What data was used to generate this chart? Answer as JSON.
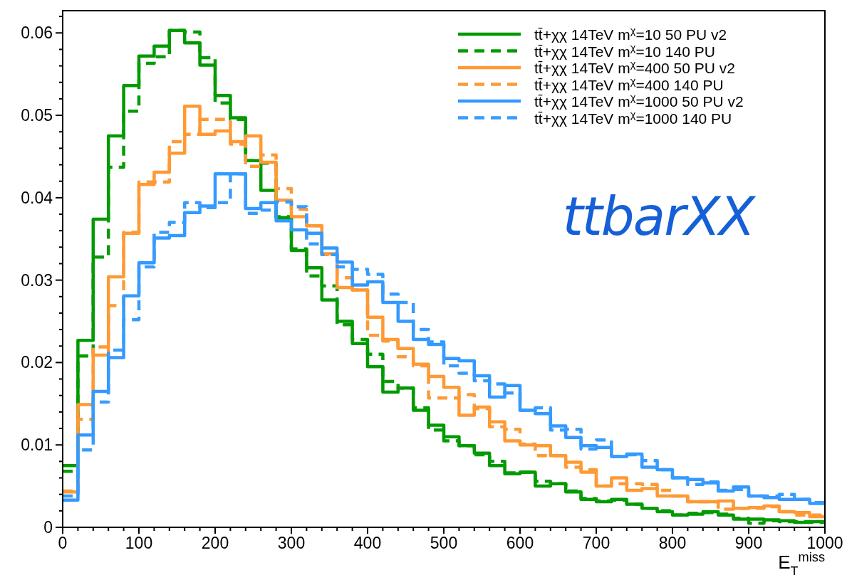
{
  "chart_data": {
    "type": "histogram",
    "xlabel": "E$_{T}$$^{miss}$",
    "bins": [
      0,
      20,
      40,
      60,
      80,
      100,
      120,
      140,
      160,
      180,
      200,
      220,
      240,
      260,
      280,
      300,
      320,
      340,
      360,
      380,
      400,
      420,
      440,
      460,
      480,
      500,
      520,
      540,
      560,
      580,
      600,
      620,
      640,
      660,
      680,
      700,
      720,
      740,
      760,
      780,
      800,
      820,
      840,
      860,
      880,
      900,
      920,
      940,
      960,
      980,
      1000
    ],
    "series": [
      {
        "name": "tt̄+χχ 14TeV m$^{χ}$=10 50 PU v2",
        "color": "#009900",
        "line_style": "solid",
        "values": [
          0.0075,
          0.0227,
          0.0374,
          0.0475,
          0.0536,
          0.0572,
          0.0584,
          0.0603,
          0.0588,
          0.0561,
          0.0524,
          0.0497,
          0.0445,
          0.0409,
          0.0376,
          0.0336,
          0.0315,
          0.0276,
          0.025,
          0.0223,
          0.0195,
          0.0164,
          0.0169,
          0.0142,
          0.0124,
          0.011,
          0.0099,
          0.009,
          0.0075,
          0.0065,
          0.0067,
          0.005,
          0.0053,
          0.0043,
          0.0034,
          0.0031,
          0.0034,
          0.0028,
          0.0023,
          0.0019,
          0.0015,
          0.0016,
          0.0019,
          0.0015,
          0.001,
          0.001,
          0.0009,
          0.0008,
          0.0006,
          0.0007
        ]
      },
      {
        "name": "tt̄+χχ 14TeV m$^{χ}$=10 140 PU",
        "color": "#049c04",
        "line_style": "dashed",
        "values": [
          0.0068,
          0.0208,
          0.0328,
          0.0437,
          0.0505,
          0.0563,
          0.0571,
          0.0603,
          0.0601,
          0.057,
          0.0515,
          0.0495,
          0.0445,
          0.0442,
          0.0377,
          0.0338,
          0.0305,
          0.0293,
          0.0246,
          0.0228,
          0.021,
          0.0177,
          0.0169,
          0.0145,
          0.0118,
          0.0105,
          0.0099,
          0.0088,
          0.008,
          0.0066,
          0.0067,
          0.0056,
          0.0053,
          0.0044,
          0.0035,
          0.0032,
          0.0033,
          0.0028,
          0.0023,
          0.002,
          0.0015,
          0.0017,
          0.0018,
          0.0016,
          0.0011,
          0.0005,
          0.0008,
          0.0007,
          0.0007,
          0.0006
        ]
      },
      {
        "name": "tt̄+χχ 14TeV m$^{χ}$=400 50 PU v2",
        "color": "#ff9933",
        "line_style": "solid",
        "values": [
          0.0043,
          0.0149,
          0.0209,
          0.0304,
          0.0357,
          0.0416,
          0.0431,
          0.0454,
          0.0511,
          0.0477,
          0.0481,
          0.0468,
          0.0475,
          0.0443,
          0.0397,
          0.0377,
          0.0366,
          0.0332,
          0.0291,
          0.0288,
          0.0255,
          0.0228,
          0.0217,
          0.0198,
          0.0183,
          0.017,
          0.0136,
          0.0146,
          0.0128,
          0.0105,
          0.01,
          0.0099,
          0.0087,
          0.0079,
          0.0067,
          0.005,
          0.006,
          0.0045,
          0.0047,
          0.0038,
          0.0038,
          0.0031,
          0.0031,
          0.0032,
          0.0023,
          0.0024,
          0.0026,
          0.0019,
          0.0018,
          0.0013
        ]
      },
      {
        "name": "tt̄+χχ 14TeV m$^{χ}$=400 140 PU",
        "color": "#fd9a36",
        "line_style": "dashed",
        "values": [
          0.0044,
          0.0131,
          0.0219,
          0.0269,
          0.0358,
          0.0419,
          0.0419,
          0.0468,
          0.0477,
          0.0495,
          0.0495,
          0.0465,
          0.0438,
          0.0452,
          0.0411,
          0.0386,
          0.0366,
          0.0331,
          0.0303,
          0.0288,
          0.0233,
          0.0226,
          0.0207,
          0.0196,
          0.0157,
          0.0157,
          0.0161,
          0.0144,
          0.0122,
          0.0119,
          0.0101,
          0.0087,
          0.0087,
          0.0073,
          0.007,
          0.005,
          0.0053,
          0.0053,
          0.0052,
          0.0045,
          0.0038,
          0.0031,
          0.0031,
          0.0022,
          0.0023,
          0.0023,
          0.0025,
          0.0019,
          0.0015,
          0.0015
        ]
      },
      {
        "name": "tt̄+χχ 14TeV m$^{χ}$=1000 50 PU v2",
        "color": "#3399ff",
        "line_style": "solid",
        "values": [
          0.0033,
          0.0112,
          0.0165,
          0.0206,
          0.0281,
          0.0321,
          0.0351,
          0.0354,
          0.0382,
          0.039,
          0.0429,
          0.0429,
          0.0387,
          0.0394,
          0.0372,
          0.0361,
          0.0357,
          0.0339,
          0.0322,
          0.0294,
          0.0298,
          0.0273,
          0.025,
          0.0228,
          0.0222,
          0.0205,
          0.0202,
          0.0184,
          0.0158,
          0.0172,
          0.0142,
          0.0138,
          0.0123,
          0.0109,
          0.0099,
          0.0097,
          0.0086,
          0.0089,
          0.0073,
          0.007,
          0.006,
          0.0058,
          0.0054,
          0.0044,
          0.0049,
          0.0038,
          0.0036,
          0.0034,
          0.0034,
          0.0029
        ]
      },
      {
        "name": "tt̄+χχ 14TeV m$^{χ}$=1000 140 PU",
        "color": "#379cfd",
        "line_style": "dashed",
        "values": [
          0.0038,
          0.0094,
          0.0152,
          0.0215,
          0.0252,
          0.0316,
          0.0358,
          0.037,
          0.0394,
          0.0388,
          0.0394,
          0.0429,
          0.0381,
          0.0385,
          0.0395,
          0.0389,
          0.0344,
          0.0331,
          0.0316,
          0.0313,
          0.0307,
          0.0283,
          0.0273,
          0.024,
          0.0225,
          0.0196,
          0.0187,
          0.0178,
          0.0174,
          0.0163,
          0.0142,
          0.0145,
          0.0118,
          0.0119,
          0.0095,
          0.0106,
          0.0086,
          0.0088,
          0.0081,
          0.007,
          0.006,
          0.0052,
          0.0055,
          0.0045,
          0.0046,
          0.0038,
          0.0038,
          0.004,
          0.0034,
          0.003
        ]
      }
    ],
    "xlim": [
      0,
      1000
    ],
    "xticks": [
      0,
      {
        "value": 20,
        "label": null
      },
      {
        "value": 40,
        "label": null
      },
      {
        "value": 60,
        "label": null
      },
      {
        "value": 80,
        "label": null
      },
      100,
      {
        "value": 120,
        "label": null
      },
      {
        "value": 140,
        "label": null
      },
      {
        "value": 160,
        "label": null
      },
      {
        "value": 180,
        "label": null
      },
      200,
      {
        "value": 220,
        "label": null
      },
      {
        "value": 240,
        "label": null
      },
      {
        "value": 260,
        "label": null
      },
      {
        "value": 280,
        "label": null
      },
      300,
      {
        "value": 320,
        "label": null
      },
      {
        "value": 340,
        "label": null
      },
      {
        "value": 360,
        "label": null
      },
      {
        "value": 380,
        "label": null
      },
      400,
      {
        "value": 420,
        "label": null
      },
      {
        "value": 440,
        "label": null
      },
      {
        "value": 460,
        "label": null
      },
      {
        "value": 480,
        "label": null
      },
      500,
      {
        "value": 520,
        "label": null
      },
      {
        "value": 540,
        "label": null
      },
      {
        "value": 560,
        "label": null
      },
      {
        "value": 580,
        "label": null
      },
      600,
      {
        "value": 620,
        "label": null
      },
      {
        "value": 640,
        "label": null
      },
      {
        "value": 660,
        "label": null
      },
      {
        "value": 680,
        "label": null
      },
      700,
      {
        "value": 720,
        "label": null
      },
      {
        "value": 740,
        "label": null
      },
      {
        "value": 760,
        "label": null
      },
      {
        "value": 780,
        "label": null
      },
      800,
      {
        "value": 820,
        "label": null
      },
      {
        "value": 840,
        "label": null
      },
      {
        "value": 860,
        "label": null
      },
      {
        "value": 880,
        "label": null
      },
      900,
      {
        "value": 920,
        "label": null
      },
      {
        "value": 940,
        "label": null
      },
      {
        "value": 960,
        "label": null
      },
      {
        "value": 980,
        "label": null
      },
      1000
    ],
    "ylim": [
      0,
      0.0627
    ],
    "yticks": [
      0,
      {
        "value": 0.002,
        "label": null
      },
      {
        "value": 0.004,
        "label": null
      },
      {
        "value": 0.006,
        "label": null
      },
      {
        "value": 0.008,
        "label": null
      },
      0.01,
      {
        "value": 0.012,
        "label": null
      },
      {
        "value": 0.014,
        "label": null
      },
      {
        "value": 0.016,
        "label": null
      },
      {
        "value": 0.018,
        "label": null
      },
      0.02,
      {
        "value": 0.022,
        "label": null
      },
      {
        "value": 0.024,
        "label": null
      },
      {
        "value": 0.026,
        "label": null
      },
      {
        "value": 0.028,
        "label": null
      },
      0.03,
      {
        "value": 0.032,
        "label": null
      },
      {
        "value": 0.034,
        "label": null
      },
      {
        "value": 0.036,
        "label": null
      },
      {
        "value": 0.038,
        "label": null
      },
      0.04,
      {
        "value": 0.042,
        "label": null
      },
      {
        "value": 0.044,
        "label": null
      },
      {
        "value": 0.046,
        "label": null
      },
      {
        "value": 0.048,
        "label": null
      },
      0.05,
      {
        "value": 0.052,
        "label": null
      },
      {
        "value": 0.054,
        "label": null
      },
      {
        "value": 0.056,
        "label": null
      },
      {
        "value": 0.058,
        "label": null
      },
      0.06,
      {
        "value": 0.062,
        "label": null
      }
    ],
    "annotations": [
      "ttbarXX"
    ],
    "legend": "top right",
    "grid": false
  }
}
